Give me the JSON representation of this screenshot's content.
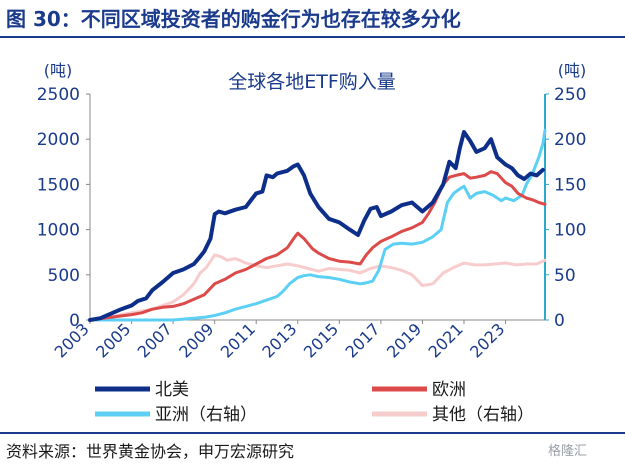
{
  "figure_title": "图 30：不同区域投资者的购金行为也存在较多分化",
  "source": "资料来源：世界黄金协会，申万宏源研究",
  "watermark": "格隆汇",
  "chart_data": {
    "type": "line",
    "title": "全球各地ETF购入量",
    "y_left": {
      "unit": "(吨)",
      "range": [
        0,
        2500
      ],
      "ticks": [
        0,
        500,
        1000,
        1500,
        2000,
        2500
      ]
    },
    "y_right": {
      "unit": "(吨)",
      "range": [
        0,
        250
      ],
      "ticks": [
        0,
        50,
        100,
        150,
        200,
        250
      ]
    },
    "x_ticks": [
      "2003",
      "2005",
      "2007",
      "2009",
      "2011",
      "2013",
      "2015",
      "2017",
      "2019",
      "2021",
      "2023"
    ],
    "x_range": [
      2003,
      2024.9
    ],
    "grid": false,
    "colors": {
      "left_axis": "#1a3a8c",
      "right_axis": "#2aa9c8"
    },
    "series": [
      {
        "name": "北美",
        "axis": "left",
        "color": "#0d2f8a",
        "width": 4,
        "x": [
          2003.0,
          2003.5,
          2004.0,
          2004.5,
          2005.0,
          2005.3,
          2005.7,
          2006.0,
          2006.5,
          2007.0,
          2007.5,
          2008.0,
          2008.3,
          2008.5,
          2008.8,
          2009.0,
          2009.2,
          2009.5,
          2010.0,
          2010.5,
          2011.0,
          2011.3,
          2011.5,
          2011.8,
          2012.0,
          2012.5,
          2012.8,
          2013.0,
          2013.3,
          2013.6,
          2014.0,
          2014.5,
          2015.0,
          2015.5,
          2015.9,
          2016.2,
          2016.5,
          2016.8,
          2017.0,
          2017.5,
          2018.0,
          2018.5,
          2019.0,
          2019.5,
          2020.0,
          2020.3,
          2020.6,
          2020.8,
          2021.0,
          2021.3,
          2021.6,
          2022.0,
          2022.3,
          2022.6,
          2023.0,
          2023.3,
          2023.6,
          2023.9,
          2024.2,
          2024.5,
          2024.8
        ],
        "y": [
          0,
          20,
          70,
          120,
          160,
          210,
          240,
          330,
          420,
          520,
          560,
          620,
          700,
          760,
          900,
          1170,
          1200,
          1180,
          1220,
          1250,
          1400,
          1420,
          1600,
          1580,
          1620,
          1650,
          1700,
          1720,
          1600,
          1400,
          1250,
          1120,
          1080,
          1000,
          940,
          1100,
          1230,
          1250,
          1150,
          1200,
          1270,
          1300,
          1200,
          1300,
          1500,
          1750,
          1680,
          1900,
          2080,
          1980,
          1860,
          1900,
          2000,
          1800,
          1720,
          1680,
          1600,
          1560,
          1620,
          1600,
          1660
        ]
      },
      {
        "name": "欧洲",
        "axis": "left",
        "color": "#dd4a4a",
        "width": 3,
        "x": [
          2003.0,
          2004.0,
          2005.0,
          2005.5,
          2006.0,
          2006.5,
          2007.0,
          2007.5,
          2008.0,
          2008.5,
          2009.0,
          2009.5,
          2010.0,
          2010.5,
          2011.0,
          2011.5,
          2012.0,
          2012.5,
          2012.8,
          2013.0,
          2013.3,
          2013.7,
          2014.0,
          2014.5,
          2015.0,
          2015.5,
          2016.0,
          2016.3,
          2016.6,
          2017.0,
          2017.5,
          2018.0,
          2018.5,
          2019.0,
          2019.3,
          2019.6,
          2020.0,
          2020.3,
          2020.6,
          2021.0,
          2021.3,
          2021.6,
          2022.0,
          2022.3,
          2022.6,
          2023.0,
          2023.3,
          2023.6,
          2024.0,
          2024.3,
          2024.6,
          2024.9
        ],
        "y": [
          0,
          30,
          60,
          80,
          120,
          140,
          150,
          180,
          230,
          280,
          400,
          450,
          520,
          560,
          620,
          680,
          720,
          800,
          900,
          960,
          900,
          790,
          740,
          680,
          650,
          640,
          620,
          720,
          800,
          870,
          920,
          980,
          1020,
          1080,
          1180,
          1300,
          1500,
          1580,
          1600,
          1620,
          1570,
          1580,
          1600,
          1640,
          1620,
          1520,
          1480,
          1400,
          1350,
          1330,
          1300,
          1280
        ]
      },
      {
        "name": "亚洲（右轴）",
        "axis": "right",
        "color": "#5bd0f4",
        "width": 3,
        "x": [
          2003.0,
          2005.0,
          2006.0,
          2007.0,
          2007.5,
          2008.0,
          2008.5,
          2009.0,
          2009.5,
          2010.0,
          2010.5,
          2011.0,
          2011.5,
          2012.0,
          2012.3,
          2012.6,
          2013.0,
          2013.3,
          2013.6,
          2014.0,
          2014.5,
          2015.0,
          2015.5,
          2016.0,
          2016.3,
          2016.6,
          2016.9,
          2017.2,
          2017.6,
          2018.0,
          2018.5,
          2019.0,
          2019.5,
          2019.9,
          2020.2,
          2020.5,
          2020.8,
          2021.0,
          2021.3,
          2021.6,
          2022.0,
          2022.4,
          2022.8,
          2023.0,
          2023.4,
          2023.8,
          2024.0,
          2024.3,
          2024.6,
          2024.8,
          2024.9
        ],
        "y": [
          0,
          0,
          0,
          0,
          1,
          2,
          3,
          5,
          8,
          12,
          15,
          18,
          22,
          26,
          32,
          40,
          47,
          49,
          50,
          48,
          47,
          45,
          42,
          40,
          41,
          43,
          55,
          78,
          84,
          85,
          84,
          86,
          92,
          100,
          130,
          140,
          145,
          148,
          135,
          140,
          142,
          138,
          132,
          135,
          132,
          138,
          150,
          162,
          180,
          195,
          210
        ]
      },
      {
        "name": "其他（右轴）",
        "axis": "right",
        "color": "#f7cccc",
        "width": 3,
        "x": [
          2003.0,
          2003.5,
          2004.0,
          2004.5,
          2005.0,
          2005.5,
          2006.0,
          2006.5,
          2007.0,
          2007.5,
          2008.0,
          2008.3,
          2008.6,
          2009.0,
          2009.3,
          2009.6,
          2010.0,
          2010.5,
          2011.0,
          2011.5,
          2012.0,
          2012.5,
          2013.0,
          2013.5,
          2014.0,
          2014.5,
          2015.0,
          2015.5,
          2016.0,
          2016.5,
          2017.0,
          2017.5,
          2018.0,
          2018.5,
          2019.0,
          2019.5,
          2020.0,
          2020.5,
          2021.0,
          2021.5,
          2022.0,
          2022.5,
          2023.0,
          2023.5,
          2024.0,
          2024.5,
          2024.9
        ],
        "y": [
          0,
          1,
          3,
          6,
          8,
          10,
          12,
          16,
          20,
          28,
          40,
          52,
          58,
          72,
          70,
          66,
          68,
          63,
          60,
          58,
          60,
          62,
          60,
          57,
          54,
          57,
          56,
          55,
          52,
          57,
          60,
          58,
          55,
          50,
          38,
          40,
          52,
          58,
          63,
          61,
          61,
          62,
          63,
          61,
          62,
          62,
          66
        ]
      }
    ]
  }
}
